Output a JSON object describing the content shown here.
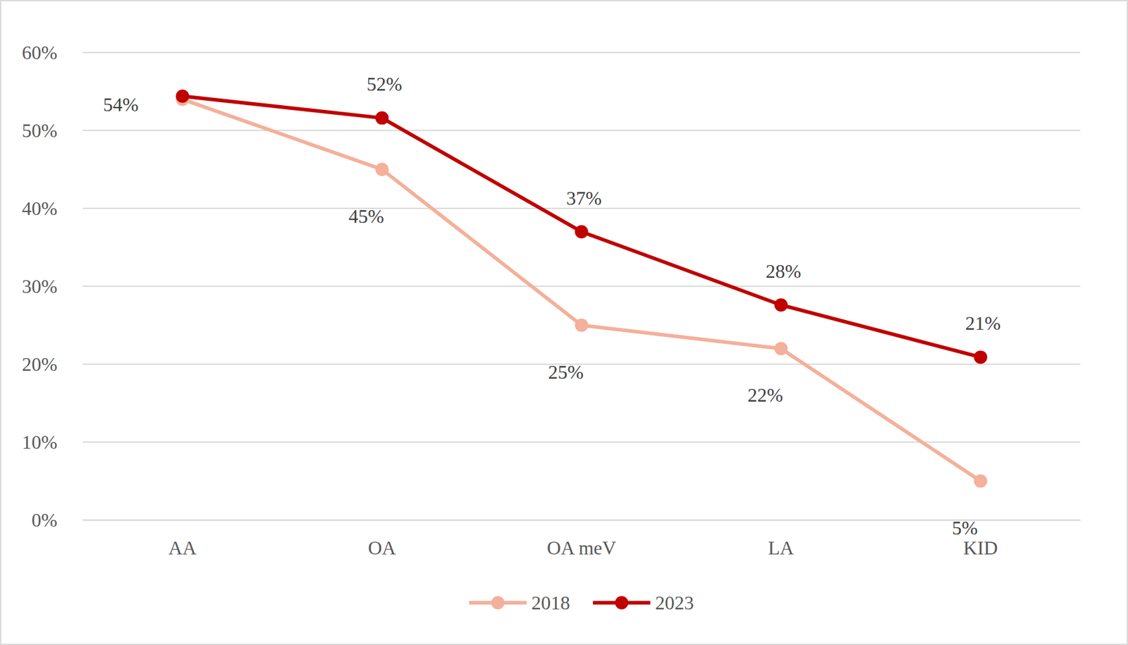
{
  "chart_data": {
    "type": "line",
    "categories": [
      "AA",
      "OA",
      "OA meV",
      "LA",
      "KID"
    ],
    "series": [
      {
        "name": "2018",
        "color": "#F4B09A",
        "marker": "circle",
        "values": [
          54,
          45,
          25,
          22,
          5
        ],
        "value_labels": [
          null,
          "45%",
          "25%",
          "22%",
          "5%"
        ]
      },
      {
        "name": "2023",
        "color": "#C00000",
        "marker": "circle",
        "values": [
          54.4,
          51.6,
          37,
          27.6,
          20.9
        ],
        "value_labels": [
          "54%",
          "52%",
          "37%",
          "28%",
          "21%"
        ]
      }
    ],
    "ylim": [
      0,
      60
    ],
    "yticks": [
      {
        "value": 0,
        "label": "0%"
      },
      {
        "value": 10,
        "label": "10%"
      },
      {
        "value": 20,
        "label": "20%"
      },
      {
        "value": 30,
        "label": "30%"
      },
      {
        "value": 40,
        "label": "40%"
      },
      {
        "value": 50,
        "label": "50%"
      },
      {
        "value": 60,
        "label": "60%"
      }
    ],
    "grid": true,
    "legend": "bottom",
    "data_labels": true
  }
}
